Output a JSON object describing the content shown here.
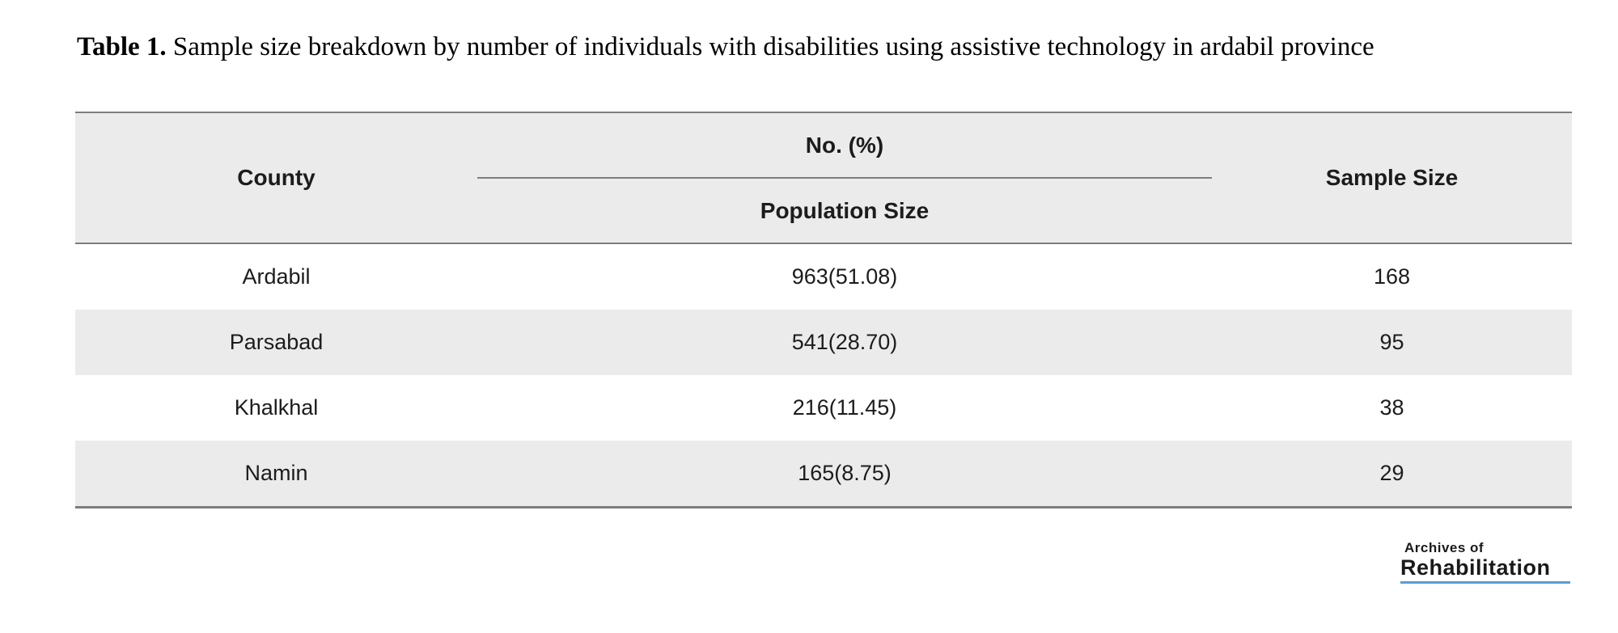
{
  "caption": {
    "label": "Table 1.",
    "text": " Sample size breakdown by number of individuals with disabilities using assistive technology in ardabil province"
  },
  "table": {
    "headers": {
      "county": "County",
      "group": "No. (%)",
      "sub": "Population Size",
      "sample": "Sample Size"
    },
    "rows": [
      {
        "county": "Ardabil",
        "population": "963(51.08)",
        "sample": "168"
      },
      {
        "county": "Parsabad",
        "population": "541(28.70)",
        "sample": "95"
      },
      {
        "county": "Khalkhal",
        "population": "216(11.45)",
        "sample": "38"
      },
      {
        "county": "Namin",
        "population": "165(8.75)",
        "sample": "29"
      }
    ]
  },
  "logo": {
    "line1": "Archives of",
    "line2": "Rehabilitation"
  },
  "colors": {
    "row_alt_bg": "#ebebeb",
    "header_bg": "#ebebeb",
    "border": "#7d7d7d",
    "logo_underline": "#5b9bd5",
    "text": "#1c1c1c"
  }
}
